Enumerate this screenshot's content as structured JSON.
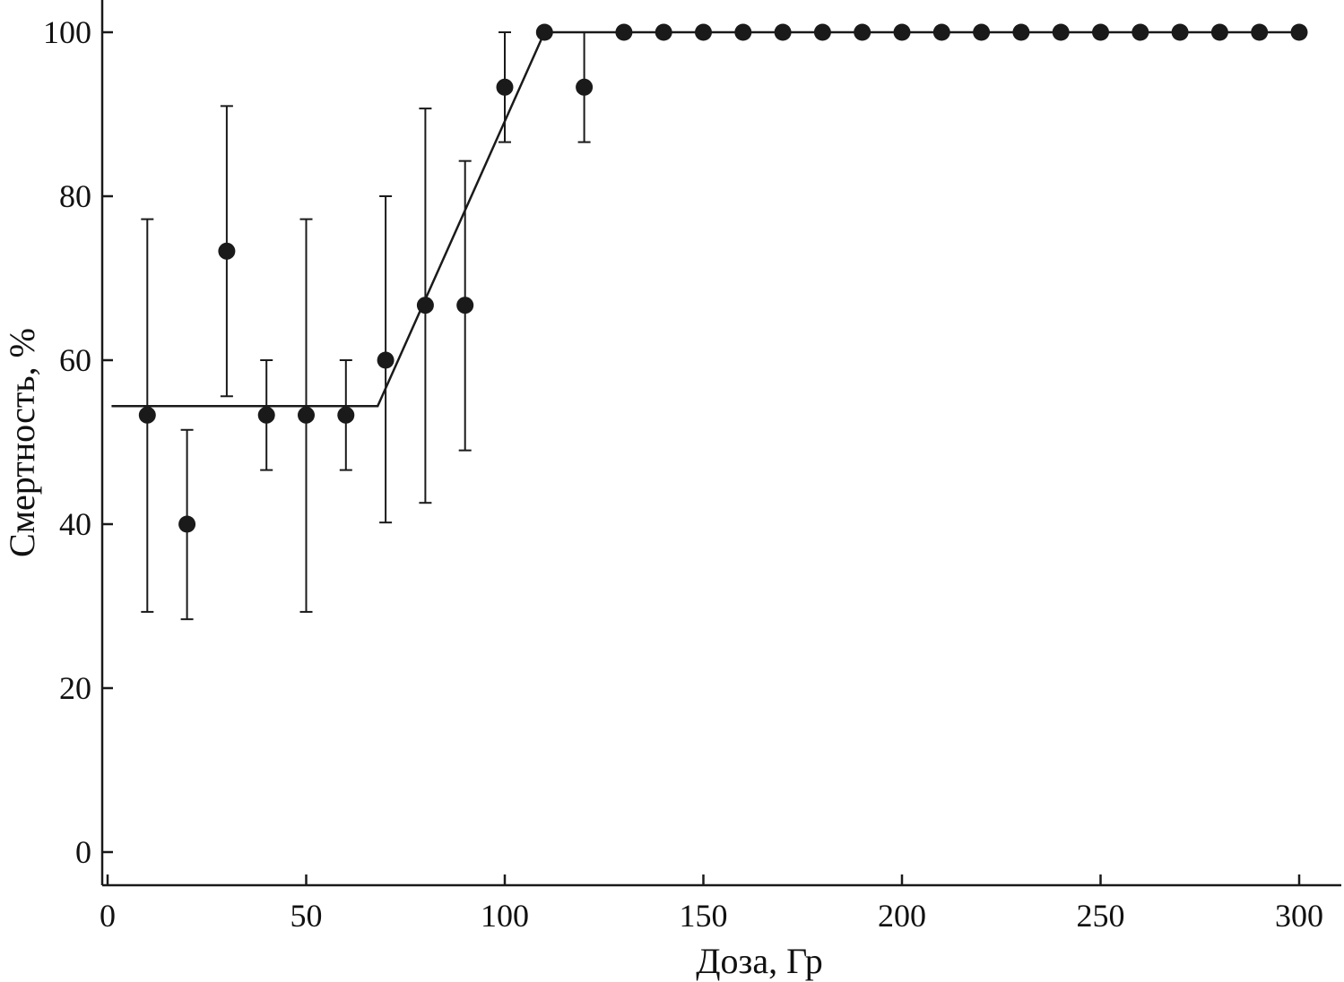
{
  "chart_data": {
    "type": "scatter",
    "title": "",
    "xlabel": "Доза, Гр",
    "ylabel": "Смертность, %",
    "xlim": [
      -2,
      310
    ],
    "ylim": [
      -4,
      108
    ],
    "xticks": [
      0,
      50,
      100,
      150,
      200,
      250,
      300
    ],
    "yticks": [
      0,
      20,
      40,
      60,
      80,
      100
    ],
    "grid": false,
    "legend": "none",
    "series": [
      {
        "type": "scatter",
        "marker": "filled-circle",
        "x": [
          10,
          20,
          30,
          40,
          50,
          60,
          70,
          80,
          90,
          100,
          110,
          120,
          130,
          140,
          150,
          160,
          170,
          180,
          190,
          200,
          210,
          220,
          230,
          240,
          250,
          260,
          270,
          280,
          290,
          300
        ],
        "y": [
          53.3,
          40,
          73.3,
          53.3,
          53.3,
          53.3,
          60,
          66.7,
          66.7,
          93.3,
          100,
          93.3,
          100,
          100,
          100,
          100,
          100,
          100,
          100,
          100,
          100,
          100,
          100,
          100,
          100,
          100,
          100,
          100,
          100,
          100
        ],
        "error_low": [
          29.3,
          28.4,
          55.6,
          46.6,
          29.3,
          46.6,
          40.2,
          42.6,
          49,
          86.6,
          null,
          86.6,
          null,
          null,
          null,
          null,
          null,
          null,
          null,
          null,
          null,
          null,
          null,
          null,
          null,
          null,
          null,
          null,
          null,
          null
        ],
        "error_high": [
          77.2,
          51.5,
          91,
          60,
          77.2,
          60,
          80,
          90.7,
          84.3,
          100,
          null,
          100,
          null,
          null,
          null,
          null,
          null,
          null,
          null,
          null,
          null,
          null,
          null,
          null,
          null,
          null,
          null,
          null,
          null,
          null
        ]
      },
      {
        "type": "line",
        "x": [
          1,
          68,
          110,
          301
        ],
        "y": [
          54.4,
          54.4,
          100,
          100
        ]
      }
    ],
    "colors": {
      "marks": "#1a1a1a",
      "axis": "#1a1a1a",
      "background": "#ffffff"
    }
  }
}
